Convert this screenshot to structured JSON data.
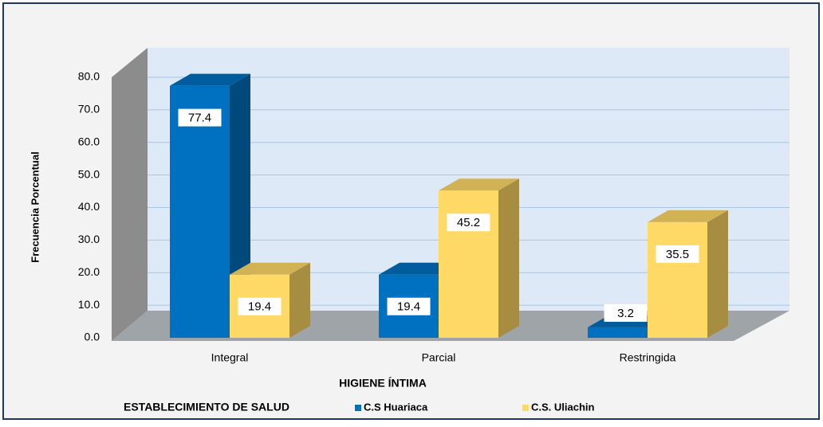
{
  "chart_data": {
    "type": "bar3d",
    "y_label": "Frecuencia Porcentual",
    "x_label": "HIGIENE ÍNTIMA",
    "legend_title": "ESTABLECIMIENTO DE SALUD",
    "categories": [
      "Integral",
      "Parcial",
      "Restringida"
    ],
    "series": [
      {
        "name": "C.S Huariaca",
        "color": "#0070c0",
        "values": [
          77.4,
          19.4,
          3.2
        ]
      },
      {
        "name": "C.S. Uliachin",
        "color": "#ffd966",
        "values": [
          19.4,
          45.2,
          35.5
        ]
      }
    ],
    "ylim": [
      0,
      80
    ],
    "yticks": [
      {
        "value": 0,
        "label": "0.0"
      },
      {
        "value": 10,
        "label": "10.0"
      },
      {
        "value": 20,
        "label": "20.0"
      },
      {
        "value": 30,
        "label": "30.0"
      },
      {
        "value": 40,
        "label": "40.0"
      },
      {
        "value": 50,
        "label": "50.0"
      },
      {
        "value": 60,
        "label": "60.0"
      },
      {
        "value": 70,
        "label": "70.0"
      },
      {
        "value": 80,
        "label": "80.0"
      }
    ],
    "grid": true
  }
}
